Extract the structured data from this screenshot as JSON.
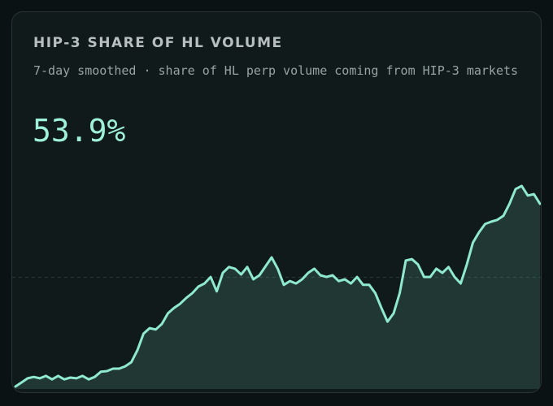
{
  "chart_data": {
    "type": "area",
    "title": "HIP-3 SHARE OF HL VOLUME",
    "subtitle": "7-day smoothed · share of HL perp volume coming from HIP-3 markets",
    "headline": "53.9%",
    "color": "#8fe9cf",
    "ylim": [
      0,
      65
    ],
    "midline": 32.5,
    "values": [
      0.7,
      1.9,
      3.1,
      3.5,
      3.1,
      3.8,
      2.8,
      3.8,
      2.8,
      3.3,
      3.1,
      3.8,
      2.8,
      3.5,
      5.0,
      5.2,
      5.9,
      5.9,
      6.6,
      7.8,
      11.3,
      16.1,
      17.7,
      17.3,
      18.9,
      22.0,
      23.6,
      24.8,
      26.5,
      27.9,
      29.8,
      30.7,
      32.6,
      28.4,
      33.8,
      35.5,
      35.0,
      33.3,
      35.5,
      31.9,
      33.1,
      35.7,
      38.3,
      35.0,
      30.3,
      31.4,
      30.7,
      31.9,
      33.8,
      35.0,
      33.1,
      32.6,
      33.1,
      31.4,
      31.9,
      30.7,
      32.6,
      30.3,
      30.3,
      27.9,
      23.6,
      19.6,
      22.0,
      27.9,
      37.4,
      37.8,
      36.2,
      32.6,
      32.6,
      35.0,
      33.8,
      35.5,
      32.6,
      30.7,
      36.2,
      42.6,
      45.6,
      48.0,
      48.7,
      49.2,
      50.4,
      53.9,
      58.2,
      59.1,
      56.3,
      56.7,
      53.9
    ]
  }
}
